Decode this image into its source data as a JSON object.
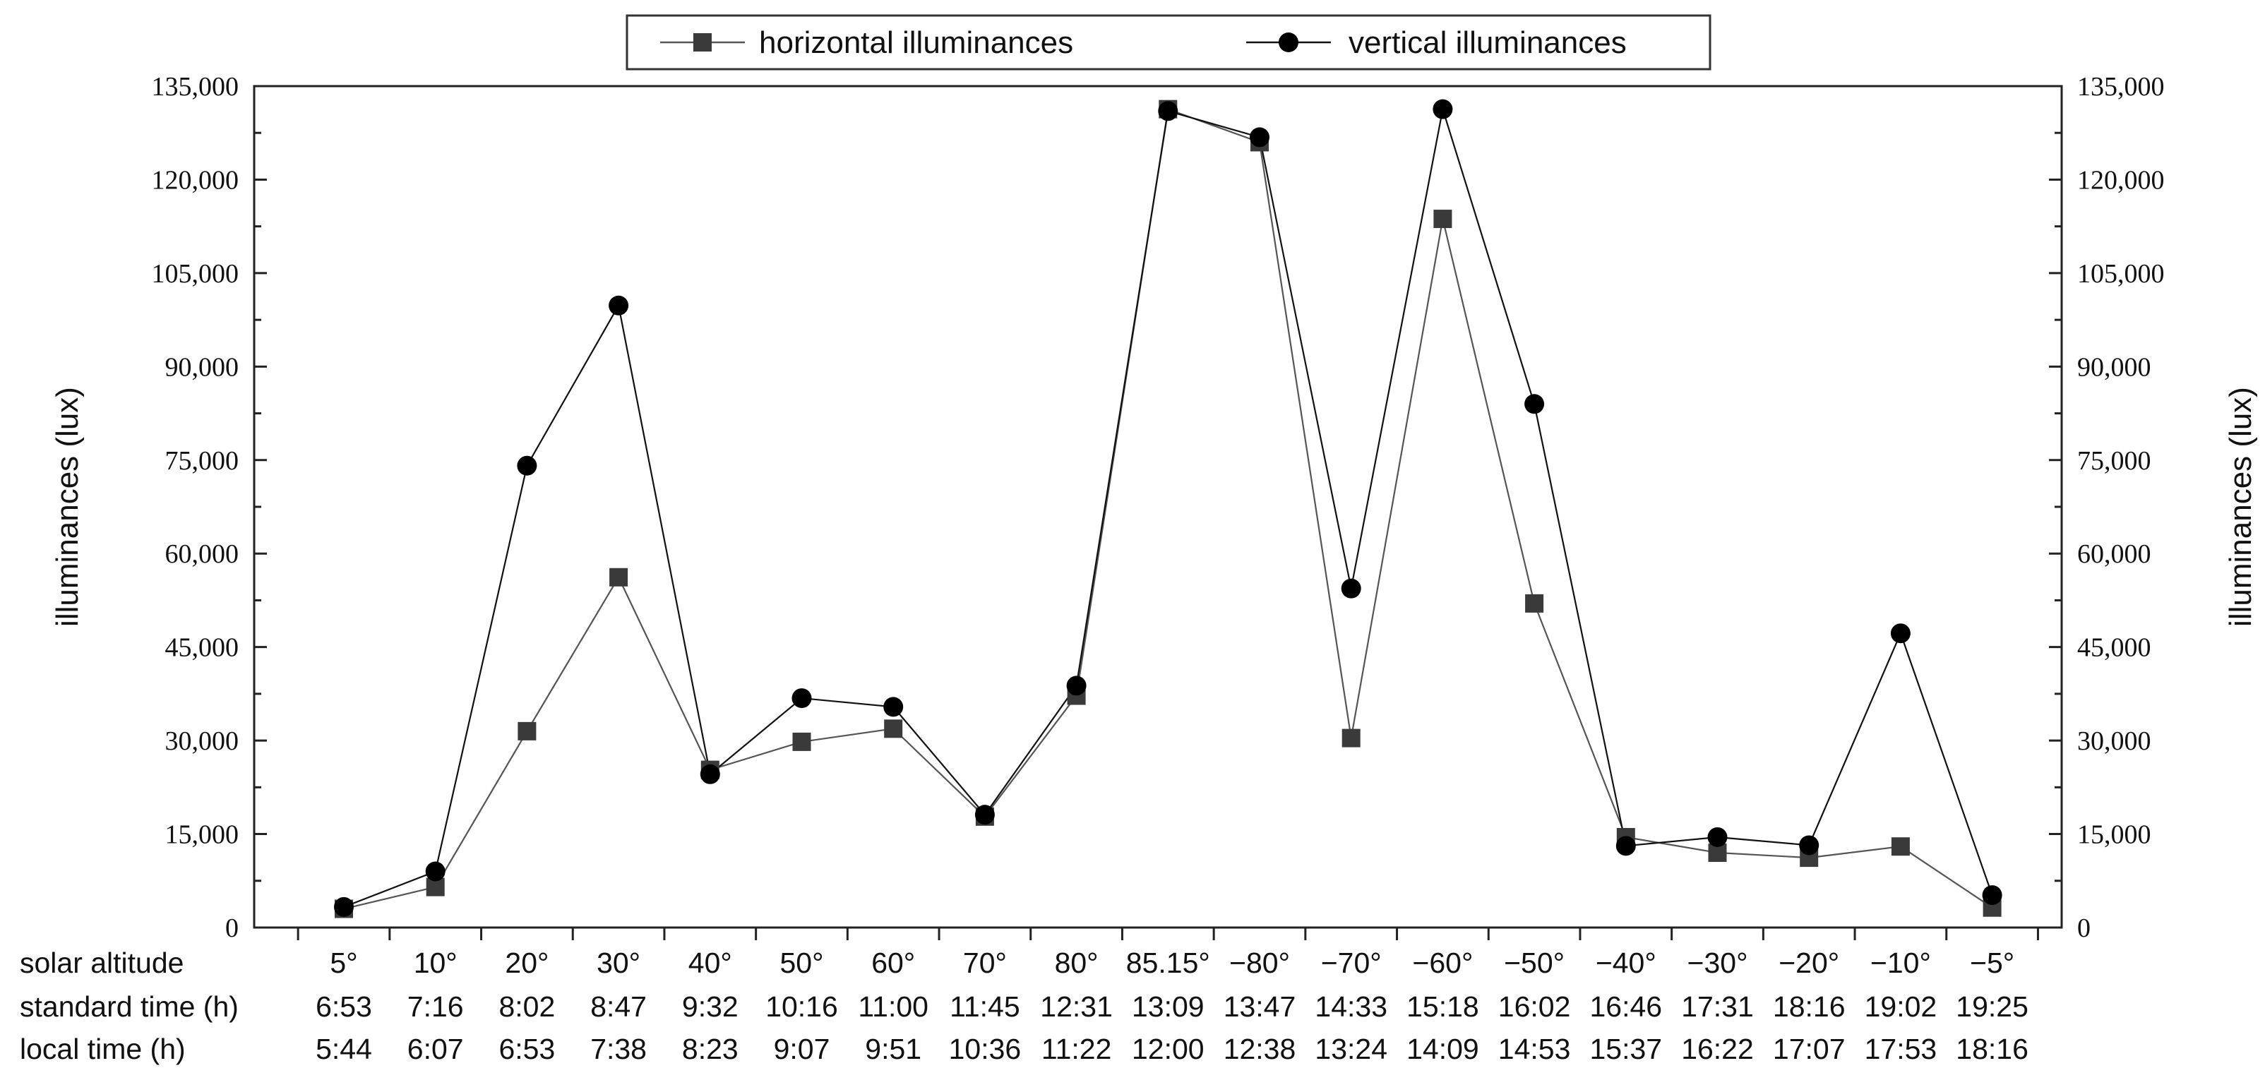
{
  "chart_data": {
    "type": "line",
    "xlabel": "solar altitude",
    "ylabel": "illuminances (lux)",
    "ylabel_right": "illuminances (lux)",
    "ylim": [
      0,
      135000
    ],
    "yticks": [
      "0",
      "15,000",
      "30,000",
      "45,000",
      "60,000",
      "75,000",
      "90,000",
      "105,000",
      "120,000",
      "135,000"
    ],
    "ytick_values": [
      0,
      15000,
      30000,
      45000,
      60000,
      75000,
      90000,
      105000,
      120000,
      135000
    ],
    "legend_position": "top-center",
    "grid": false,
    "row_labels": {
      "solar_altitude": "solar altitude",
      "standard_time": "standard time (h)",
      "local_time": "local time (h)"
    },
    "categories": [
      "5°",
      "10°",
      "20°",
      "30°",
      "40°",
      "50°",
      "60°",
      "70°",
      "80°",
      "85.15°",
      "−80°",
      "−70°",
      "−60°",
      "−50°",
      "−40°",
      "−30°",
      "−20°",
      "−10°",
      "−5°"
    ],
    "standard_time": [
      "6:53",
      "7:16",
      "8:02",
      "8:47",
      "9:32",
      "10:16",
      "11:00",
      "11:45",
      "12:31",
      "13:09",
      "13:47",
      "14:33",
      "15:18",
      "16:02",
      "16:46",
      "17:31",
      "18:16",
      "19:02",
      "19:25"
    ],
    "local_time": [
      "5:44",
      "6:07",
      "6:53",
      "7:38",
      "8:23",
      "9:07",
      "9:51",
      "10:36",
      "11:22",
      "12:00",
      "12:38",
      "13:24",
      "14:09",
      "14:53",
      "15:37",
      "16:22",
      "17:07",
      "17:53",
      "18:16"
    ],
    "series": [
      {
        "name": "horizontal illuminances",
        "marker": "square",
        "color": "#3a3a3a",
        "values": [
          3000,
          6500,
          31500,
          56200,
          25300,
          29800,
          31900,
          17800,
          37200,
          131300,
          126000,
          30400,
          113700,
          52000,
          14500,
          12000,
          11200,
          13000,
          3200
        ]
      },
      {
        "name": "vertical illuminances",
        "marker": "circle",
        "color": "#000000",
        "values": [
          3300,
          9000,
          74100,
          99800,
          24600,
          36800,
          35400,
          18100,
          38800,
          131000,
          126800,
          54400,
          131300,
          84000,
          13100,
          14500,
          13200,
          47200,
          5200
        ]
      }
    ]
  }
}
